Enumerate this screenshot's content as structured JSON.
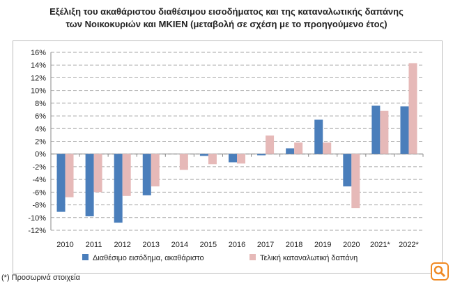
{
  "chart_data": {
    "type": "bar",
    "title_line1": "Εξέλιξη του ακαθάριστου διαθέσιμου εισοδήματος και της καταναλωτικής δαπάνης",
    "title_line2": "των Νοικοκυριών και ΜΚΙΕΝ (μεταβολή σε σχέση με το προηγούμενο έτος)",
    "categories": [
      "2010",
      "2011",
      "2012",
      "2013",
      "2014",
      "2015",
      "2016",
      "2017",
      "2018",
      "2019",
      "2020",
      "2021*",
      "2022*"
    ],
    "series": [
      {
        "name": "Διαθέσιμο εισόδημα, ακαθάριστο",
        "color": "#4a7ebb",
        "values": [
          -9.1,
          -9.8,
          -10.8,
          -6.5,
          0,
          -0.3,
          -1.3,
          -0.2,
          0.9,
          5.4,
          -5.1,
          7.6,
          7.5
        ]
      },
      {
        "name": "Τελική καταναλωτική δαπάνη",
        "color": "#e6b9b8",
        "values": [
          -6.8,
          -6.0,
          -6.6,
          -5.1,
          -2.5,
          -1.6,
          -1.5,
          2.9,
          1.8,
          1.8,
          -8.5,
          6.8,
          14.3
        ]
      }
    ],
    "ylim": [
      -12,
      16
    ],
    "ytick_step": 2,
    "ytick_labels": [
      "-12%",
      "-10%",
      "-8%",
      "-6%",
      "-4%",
      "-2%",
      "0%",
      "2%",
      "4%",
      "6%",
      "8%",
      "10%",
      "12%",
      "14%",
      "16%"
    ],
    "grid": true,
    "legend": "bottom"
  },
  "footnote": "(*) Προσωρινά στοιχεία",
  "logo_icon": "magnifier-icon",
  "logo_color": "#f08a24"
}
